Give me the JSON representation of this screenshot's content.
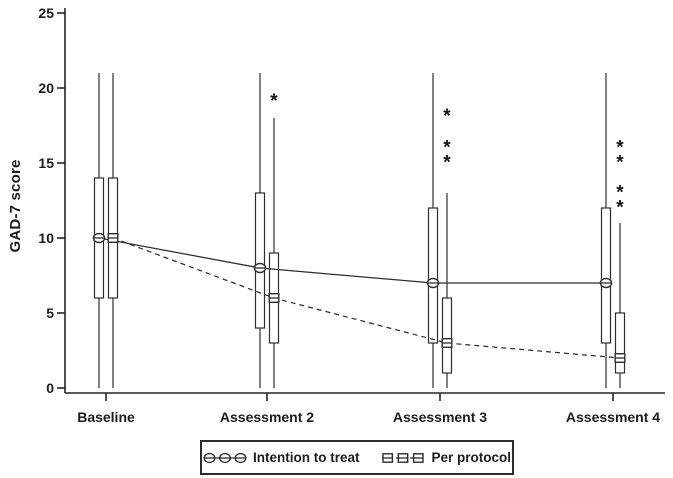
{
  "chart_data": {
    "type": "boxplot-line",
    "title": "",
    "xlabel": "",
    "ylabel": "GAD-7 score",
    "ylim": [
      0,
      25
    ],
    "yticks": [
      0,
      5,
      10,
      15,
      20,
      25
    ],
    "grid": false,
    "categories": [
      "Baseline",
      "Assessment 2",
      "Assessment 3",
      "Assessment 4"
    ],
    "series": [
      {
        "name": "Intention to treat",
        "marker": "circle",
        "line": "solid",
        "center": [
          10,
          8,
          7,
          7
        ],
        "box_low": [
          6,
          4,
          3,
          3
        ],
        "box_high": [
          14,
          13,
          12,
          12
        ],
        "whisker_low": [
          0,
          0,
          0,
          0
        ],
        "whisker_high": [
          21,
          21,
          21,
          21
        ]
      },
      {
        "name": "Per protocol",
        "marker": "square",
        "line": "dashed",
        "center": [
          10,
          6,
          3,
          2
        ],
        "box_low": [
          6,
          3,
          1,
          1
        ],
        "box_high": [
          14,
          9,
          6,
          5
        ],
        "whisker_low": [
          0,
          0,
          0,
          0
        ],
        "whisker_high": [
          21,
          18,
          13,
          11
        ]
      }
    ],
    "annotations": [
      {
        "category_index": 1,
        "series": "Per protocol",
        "symbol": "*",
        "values": [
          19.2
        ]
      },
      {
        "category_index": 2,
        "series": "Per protocol",
        "symbol": "*",
        "values": [
          18.2,
          16.1,
          15.1
        ]
      },
      {
        "category_index": 3,
        "series": "Per protocol",
        "symbol": "*",
        "values": [
          16.1,
          15.1,
          13.1,
          12.1
        ]
      }
    ],
    "legend": {
      "position": "bottom",
      "entries": [
        {
          "label": "Intention to treat",
          "marker": "circle",
          "line": "solid"
        },
        {
          "label": "Per protocol",
          "marker": "square",
          "line": "dashed"
        }
      ]
    },
    "colors": {
      "foreground": "#2e2e2e",
      "axis": "#242424",
      "background": "#ffffff",
      "marker_fill": "#ffffff"
    }
  }
}
